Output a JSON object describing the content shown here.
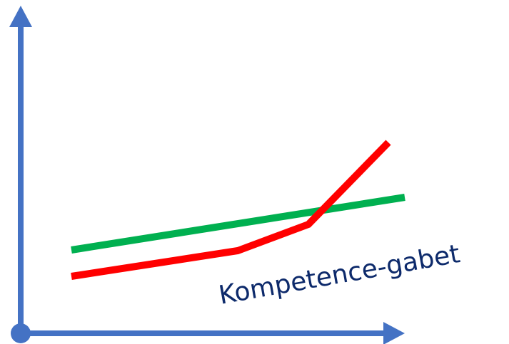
{
  "diagram": {
    "caption": "Kompetence-gabet",
    "colors": {
      "axes": "#4472c4",
      "green_line": "#00b050",
      "red_line": "#ff0000",
      "caption": "#0d2a6b"
    }
  }
}
